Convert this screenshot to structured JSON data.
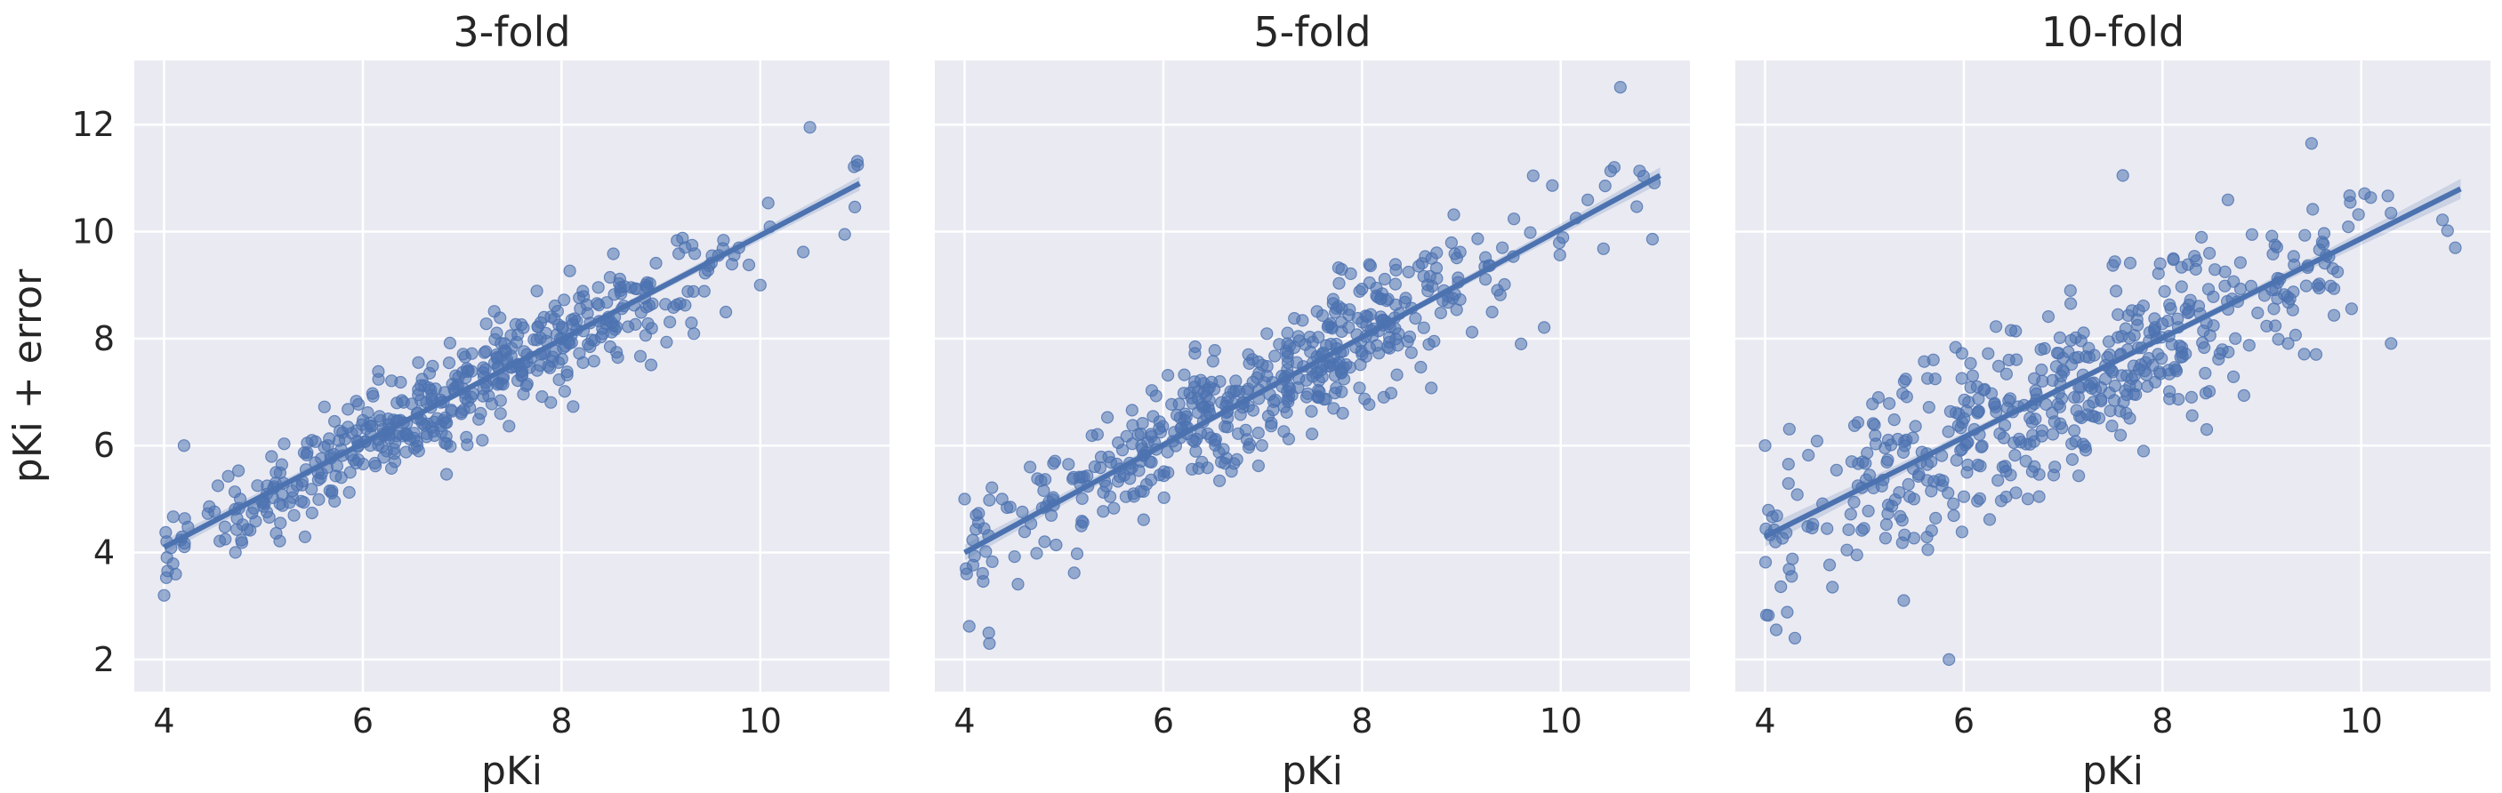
{
  "colors": {
    "panel_background": "#EAEAF2",
    "grid": "#FFFFFF",
    "points": "#4C72B0",
    "line": "#4C72B0",
    "ci_band": "#4C72B0"
  },
  "chart_data": [
    {
      "type": "scatter",
      "title": "3-fold",
      "xlabel": "pKi",
      "ylabel": "pKi + error",
      "xlim": [
        3.7,
        11.3
      ],
      "ylim": [
        1.4,
        13.2
      ],
      "xticks": [
        4,
        6,
        8,
        10
      ],
      "yticks": [
        2,
        4,
        6,
        8,
        10,
        12
      ],
      "grid": true,
      "n_points": 500,
      "noise_sd": 0.48,
      "seed": 11,
      "fit_line": {
        "x": [
          4.0,
          11.0
        ],
        "y": [
          4.1,
          10.9
        ]
      },
      "notable_points": [
        [
          4.0,
          3.2
        ],
        [
          4.2,
          6.0
        ],
        [
          10.5,
          11.95
        ],
        [
          10.85,
          9.95
        ],
        [
          10.0,
          9.0
        ]
      ]
    },
    {
      "type": "scatter",
      "title": "5-fold",
      "xlabel": "pKi",
      "ylabel": "",
      "xlim": [
        3.7,
        11.3
      ],
      "ylim": [
        1.4,
        13.2
      ],
      "xticks": [
        4,
        6,
        8,
        10
      ],
      "yticks": [
        2,
        4,
        6,
        8,
        10,
        12
      ],
      "grid": true,
      "n_points": 500,
      "noise_sd": 0.6,
      "seed": 23,
      "fit_line": {
        "x": [
          4.0,
          11.0
        ],
        "y": [
          4.0,
          11.05
        ]
      },
      "notable_points": [
        [
          4.25,
          2.3
        ],
        [
          10.6,
          12.7
        ],
        [
          9.6,
          7.9
        ],
        [
          4.0,
          5.0
        ]
      ]
    },
    {
      "type": "scatter",
      "title": "10-fold",
      "xlabel": "pKi",
      "ylabel": "",
      "xlim": [
        3.7,
        11.3
      ],
      "ylim": [
        1.4,
        13.2
      ],
      "xticks": [
        4,
        6,
        8,
        10
      ],
      "yticks": [
        2,
        4,
        6,
        8,
        10,
        12
      ],
      "grid": true,
      "n_points": 500,
      "noise_sd": 0.85,
      "seed": 37,
      "fit_line": {
        "x": [
          4.0,
          11.0
        ],
        "y": [
          4.3,
          10.8
        ]
      },
      "notable_points": [
        [
          5.85,
          2.0
        ],
        [
          9.5,
          11.65
        ],
        [
          7.6,
          11.05
        ],
        [
          4.0,
          6.0
        ],
        [
          4.3,
          2.4
        ]
      ]
    }
  ]
}
